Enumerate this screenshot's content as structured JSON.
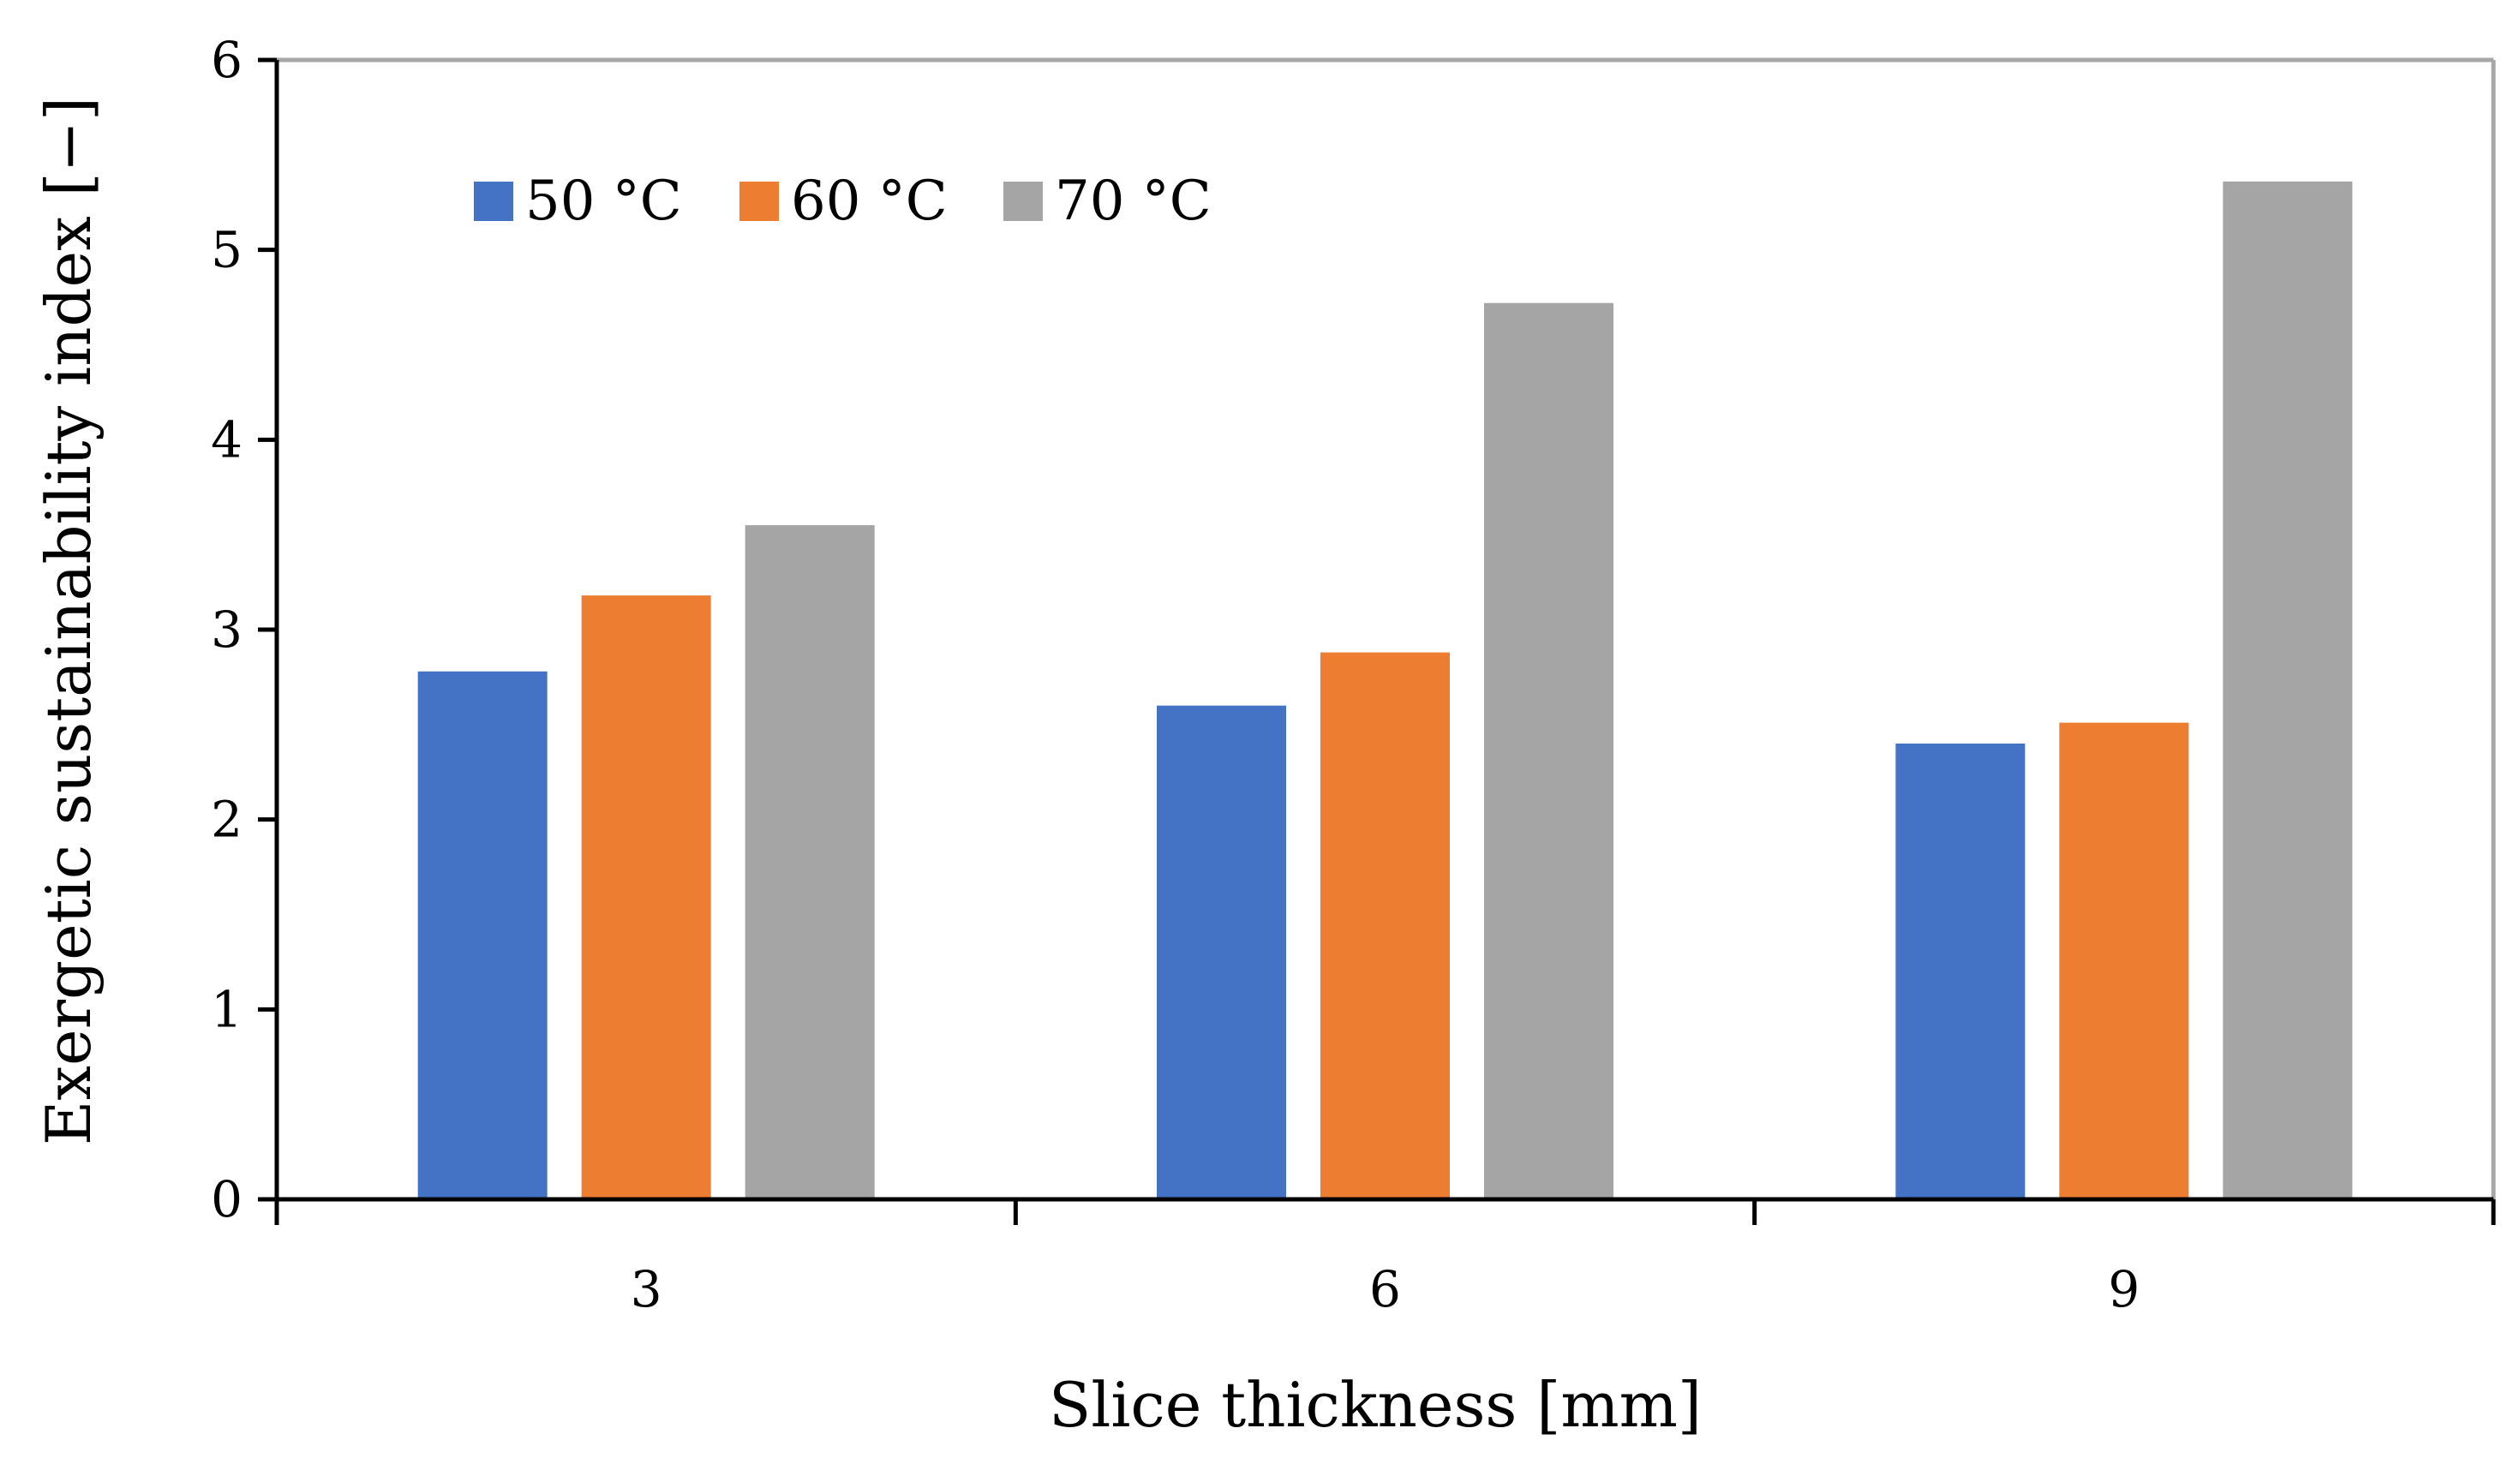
{
  "chart_data": {
    "type": "bar",
    "title": "",
    "xlabel": "Slice thickness [mm]",
    "ylabel": "Exergetic sustainability index [−]",
    "categories": [
      "3",
      "6",
      "9"
    ],
    "series": [
      {
        "name": "50 °C",
        "color": "#4472C4",
        "values": [
          2.78,
          2.6,
          2.4
        ]
      },
      {
        "name": "60 °C",
        "color": "#ED7D31",
        "values": [
          3.18,
          2.88,
          2.51
        ]
      },
      {
        "name": "70 °C",
        "color": "#A5A5A5",
        "values": [
          3.55,
          4.72,
          5.36
        ]
      }
    ],
    "ylim": [
      0,
      6
    ],
    "yticks": [
      0,
      1,
      2,
      3,
      4,
      5,
      6
    ],
    "grid": false,
    "legend_position": "top-left"
  }
}
